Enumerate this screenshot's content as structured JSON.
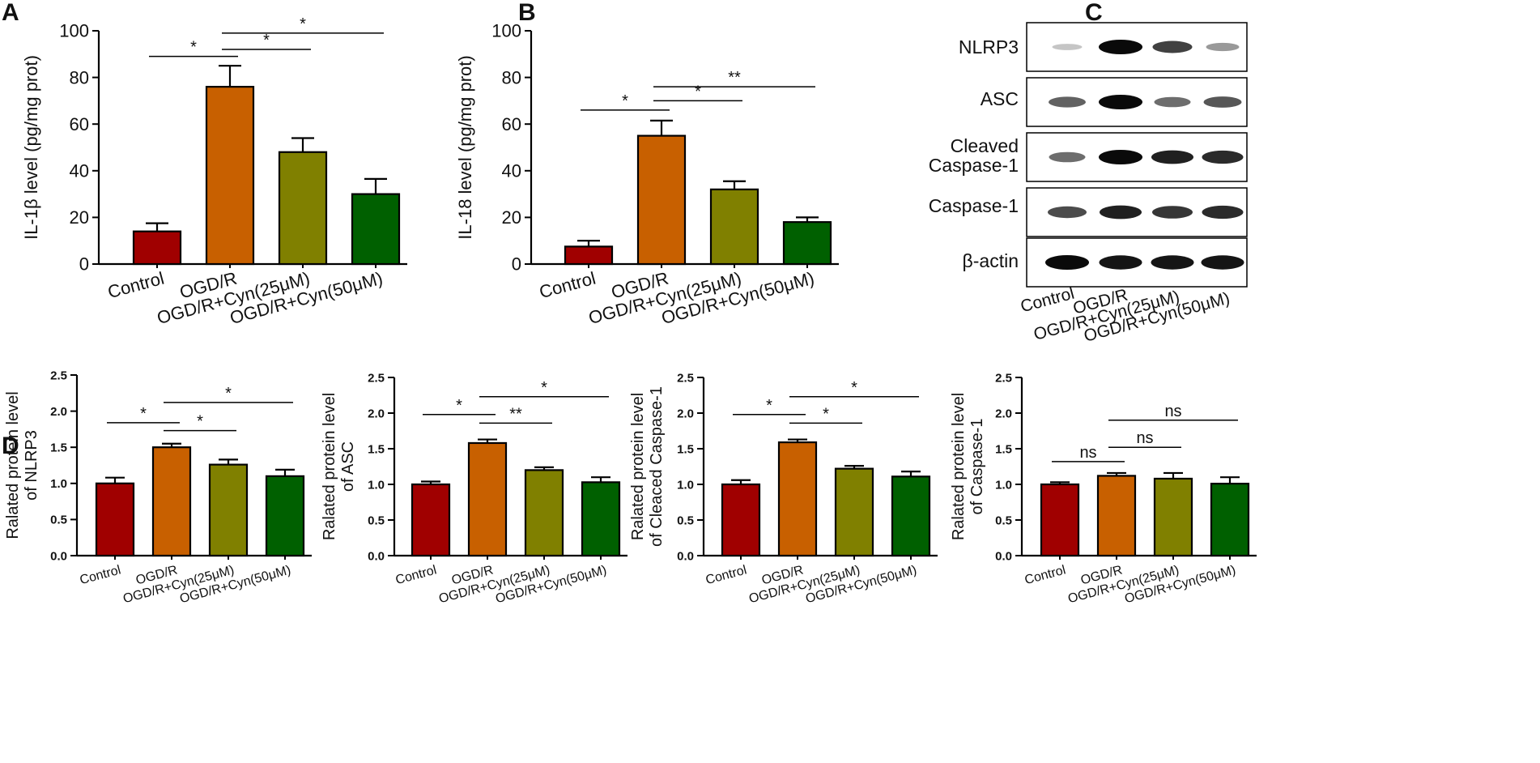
{
  "colors": {
    "control": "#a00000",
    "ogdr": "#c86000",
    "cyn25": "#808000",
    "cyn50": "#006000"
  },
  "panels": {
    "a": "A",
    "b": "B",
    "c": "C",
    "d": "D"
  },
  "chart_data": [
    {
      "id": "A",
      "type": "bar",
      "categories": [
        "Control",
        "OGD/R",
        "OGD/R+Cyn(25μM)",
        "OGD/R+Cyn(50μM)"
      ],
      "values": [
        14,
        76,
        48,
        30
      ],
      "errors": [
        3.5,
        9,
        6,
        6.5
      ],
      "ylabel": "IL-1β level (pg/mg prot)",
      "ylim": [
        0,
        100
      ],
      "yticks": [
        "0",
        "20",
        "40",
        "60",
        "80",
        "100"
      ],
      "significance": [
        {
          "from": 0,
          "to": 1,
          "y": 89,
          "label": "*"
        },
        {
          "from": 1,
          "to": 2,
          "y": 92,
          "label": "*"
        },
        {
          "from": 1,
          "to": 3,
          "y": 99,
          "label": "*"
        }
      ]
    },
    {
      "id": "B",
      "type": "bar",
      "categories": [
        "Control",
        "OGD/R",
        "OGD/R+Cyn(25μM)",
        "OGD/R+Cyn(50μM)"
      ],
      "values": [
        7.5,
        55,
        32,
        18
      ],
      "errors": [
        2.5,
        6.5,
        3.5,
        2
      ],
      "ylabel": "IL-18 level (pg/mg prot)",
      "ylim": [
        0,
        100
      ],
      "yticks": [
        "0",
        "20",
        "40",
        "60",
        "80",
        "100"
      ],
      "significance": [
        {
          "from": 0,
          "to": 1,
          "y": 66,
          "label": "*"
        },
        {
          "from": 1,
          "to": 2,
          "y": 70,
          "label": "*"
        },
        {
          "from": 1,
          "to": 3,
          "y": 76,
          "label": "**"
        }
      ]
    },
    {
      "id": "D1",
      "type": "bar",
      "categories": [
        "Control",
        "OGD/R",
        "OGD/R+Cyn(25μM)",
        "OGD/R+Cyn(50μM)"
      ],
      "values": [
        1.0,
        1.5,
        1.26,
        1.1
      ],
      "errors": [
        0.08,
        0.05,
        0.07,
        0.09
      ],
      "ylabel": "Ralated protein level of NLRP3",
      "ylim": [
        0,
        2.5
      ],
      "yticks": [
        "0.0",
        "0.5",
        "1.0",
        "1.5",
        "2.0",
        "2.5"
      ],
      "significance": [
        {
          "from": 0,
          "to": 1,
          "y": 1.84,
          "label": "*"
        },
        {
          "from": 1,
          "to": 2,
          "y": 1.73,
          "label": "*"
        },
        {
          "from": 1,
          "to": 3,
          "y": 2.12,
          "label": "*"
        }
      ]
    },
    {
      "id": "D2",
      "type": "bar",
      "categories": [
        "Control",
        "OGD/R",
        "OGD/R+Cyn(25μM)",
        "OGD/R+Cyn(50μM)"
      ],
      "values": [
        1.0,
        1.58,
        1.2,
        1.03
      ],
      "errors": [
        0.04,
        0.05,
        0.04,
        0.07
      ],
      "ylabel": "Ralated protein level of ASC",
      "ylim": [
        0,
        2.5
      ],
      "yticks": [
        "0.0",
        "0.5",
        "1.0",
        "1.5",
        "2.0",
        "2.5"
      ],
      "significance": [
        {
          "from": 0,
          "to": 1,
          "y": 1.98,
          "label": "*"
        },
        {
          "from": 1,
          "to": 2,
          "y": 1.86,
          "label": "**"
        },
        {
          "from": 1,
          "to": 3,
          "y": 2.23,
          "label": "*"
        }
      ]
    },
    {
      "id": "D3",
      "type": "bar",
      "categories": [
        "Control",
        "OGD/R",
        "OGD/R+Cyn(25μM)",
        "OGD/R+Cyn(50μM)"
      ],
      "values": [
        1.0,
        1.59,
        1.22,
        1.11
      ],
      "errors": [
        0.06,
        0.04,
        0.04,
        0.07
      ],
      "ylabel": "Ralated protein level of Cleaced Caspase-1",
      "ylim": [
        0,
        2.5
      ],
      "yticks": [
        "0.0",
        "0.5",
        "1.0",
        "1.5",
        "2.0",
        "2.5"
      ],
      "significance": [
        {
          "from": 0,
          "to": 1,
          "y": 1.98,
          "label": "*"
        },
        {
          "from": 1,
          "to": 2,
          "y": 1.86,
          "label": "*"
        },
        {
          "from": 1,
          "to": 3,
          "y": 2.23,
          "label": "*"
        }
      ]
    },
    {
      "id": "D4",
      "type": "bar",
      "categories": [
        "Control",
        "OGD/R",
        "OGD/R+Cyn(25μM)",
        "OGD/R+Cyn(50μM)"
      ],
      "values": [
        1.0,
        1.12,
        1.08,
        1.01
      ],
      "errors": [
        0.03,
        0.04,
        0.08,
        0.09
      ],
      "ylabel": "Ralated protein level of Caspase-1",
      "ylim": [
        0,
        2.5
      ],
      "yticks": [
        "0.0",
        "0.5",
        "1.0",
        "1.5",
        "2.0",
        "2.5"
      ],
      "significance": [
        {
          "from": 0,
          "to": 1,
          "y": 1.32,
          "label": "ns"
        },
        {
          "from": 1,
          "to": 2,
          "y": 1.52,
          "label": "ns"
        },
        {
          "from": 1,
          "to": 3,
          "y": 1.9,
          "label": "ns"
        }
      ]
    }
  ],
  "blot": {
    "rows": [
      {
        "label": "NLRP3",
        "intensity": [
          0.15,
          1.0,
          0.75,
          0.35
        ]
      },
      {
        "label": "ASC",
        "intensity": [
          0.6,
          1.0,
          0.55,
          0.65
        ]
      },
      {
        "label": "Cleaved Caspase-1",
        "intensity": [
          0.55,
          1.0,
          0.9,
          0.85
        ]
      },
      {
        "label": "Caspase-1",
        "intensity": [
          0.7,
          0.9,
          0.8,
          0.85
        ]
      },
      {
        "label": "β-actin",
        "intensity": [
          1.0,
          0.95,
          0.95,
          0.95
        ]
      }
    ],
    "lanes": [
      "Control",
      "OGD/R",
      "OGD/R+Cyn(25μM)",
      "OGD/R+Cyn(50μM)"
    ]
  }
}
